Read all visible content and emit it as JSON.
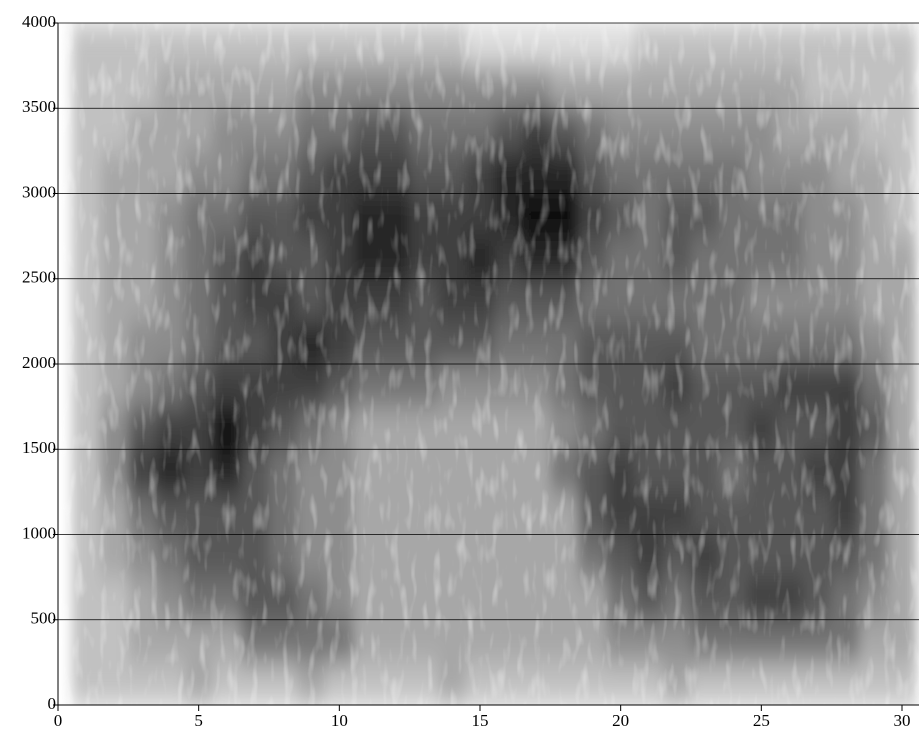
{
  "chart_data": {
    "type": "heatmap",
    "xbins": [
      0.5,
      1.5,
      2.5,
      3.5,
      4.5,
      5.5,
      6.5,
      7.5,
      8.5,
      9.5,
      10.5,
      11.5,
      12.5,
      13.5,
      14.5,
      15.5,
      16.5,
      17.5,
      18.5,
      19.5,
      20.5,
      21.5,
      22.5,
      23.5,
      24.5,
      25.5,
      26.5,
      27.5,
      28.5,
      29.5,
      30.5
    ],
    "ybins": [
      0,
      250,
      500,
      750,
      1000,
      1250,
      1500,
      1750,
      2000,
      2250,
      2500,
      2750,
      3000,
      3250,
      3500,
      3750,
      4000
    ],
    "z": [
      [
        2,
        2,
        2,
        2,
        3,
        2,
        2,
        2,
        3,
        2,
        2,
        2,
        2,
        3,
        2,
        2,
        2,
        2,
        2,
        2,
        2,
        3,
        2,
        2,
        2,
        2,
        2,
        2,
        2,
        2
      ],
      [
        2,
        2,
        3,
        3,
        3,
        3,
        5,
        5,
        5,
        5,
        3,
        3,
        3,
        3,
        3,
        3,
        3,
        3,
        3,
        4,
        4,
        4,
        5,
        5,
        5,
        5,
        5,
        5,
        3,
        3
      ],
      [
        2,
        2,
        3,
        4,
        5,
        5,
        6,
        6,
        5,
        4,
        3,
        3,
        3,
        3,
        3,
        3,
        3,
        3,
        3,
        5,
        6,
        5,
        6,
        6,
        7,
        7,
        6,
        5,
        4,
        3
      ],
      [
        2,
        3,
        4,
        5,
        6,
        6,
        6,
        5,
        4,
        4,
        3,
        3,
        3,
        3,
        3,
        3,
        3,
        3,
        5,
        6,
        7,
        6,
        7,
        6,
        6,
        6,
        6,
        6,
        5,
        3
      ],
      [
        2,
        3,
        5,
        6,
        6,
        6,
        6,
        5,
        4,
        4,
        3,
        3,
        3,
        3,
        3,
        3,
        3,
        3,
        6,
        7,
        7,
        7,
        6,
        6,
        6,
        6,
        6,
        7,
        5,
        3
      ],
      [
        2,
        4,
        7,
        8,
        7,
        8,
        6,
        5,
        4,
        4,
        3,
        3,
        3,
        3,
        3,
        3,
        3,
        5,
        6,
        7,
        6,
        6,
        6,
        5,
        6,
        6,
        7,
        7,
        5,
        3
      ],
      [
        2,
        4,
        6,
        7,
        7,
        9,
        7,
        6,
        5,
        4,
        3,
        3,
        3,
        3,
        3,
        3,
        3,
        4,
        5,
        6,
        6,
        6,
        6,
        6,
        7,
        6,
        6,
        7,
        6,
        3
      ],
      [
        2,
        3,
        4,
        5,
        6,
        7,
        7,
        7,
        7,
        6,
        5,
        5,
        5,
        4,
        4,
        4,
        4,
        5,
        6,
        6,
        6,
        7,
        6,
        6,
        6,
        7,
        7,
        7,
        5,
        3
      ],
      [
        2,
        3,
        4,
        4,
        5,
        6,
        6,
        7,
        8,
        7,
        6,
        6,
        6,
        6,
        6,
        5,
        5,
        5,
        6,
        6,
        6,
        6,
        5,
        5,
        5,
        5,
        5,
        5,
        4,
        3
      ],
      [
        2,
        3,
        3,
        4,
        5,
        6,
        7,
        7,
        6,
        7,
        7,
        7,
        6,
        7,
        7,
        6,
        6,
        6,
        5,
        5,
        5,
        5,
        5,
        5,
        4,
        4,
        4,
        4,
        3,
        3
      ],
      [
        2,
        3,
        3,
        4,
        5,
        6,
        7,
        6,
        6,
        7,
        8,
        8,
        7,
        7,
        8,
        7,
        8,
        8,
        6,
        5,
        5,
        6,
        5,
        5,
        5,
        5,
        4,
        4,
        3,
        3
      ],
      [
        2,
        3,
        3,
        4,
        5,
        5,
        6,
        6,
        7,
        7,
        8,
        8,
        7,
        7,
        7,
        8,
        9,
        9,
        7,
        6,
        5,
        6,
        6,
        5,
        5,
        5,
        4,
        4,
        3,
        2
      ],
      [
        2,
        3,
        3,
        3,
        4,
        4,
        5,
        5,
        6,
        7,
        7,
        7,
        6,
        6,
        7,
        8,
        8,
        8,
        6,
        5,
        5,
        5,
        5,
        5,
        4,
        4,
        4,
        3,
        3,
        2
      ],
      [
        2,
        2,
        3,
        3,
        3,
        4,
        4,
        4,
        5,
        5,
        6,
        6,
        5,
        5,
        5,
        6,
        7,
        6,
        5,
        4,
        4,
        4,
        4,
        4,
        4,
        3,
        3,
        3,
        2,
        2
      ],
      [
        2,
        2,
        2,
        3,
        3,
        3,
        3,
        3,
        4,
        4,
        4,
        4,
        4,
        4,
        4,
        4,
        4,
        3,
        3,
        3,
        3,
        3,
        3,
        3,
        3,
        3,
        2,
        2,
        2,
        2
      ],
      [
        2,
        2,
        2,
        2,
        2,
        2,
        2,
        2,
        2,
        2,
        2,
        2,
        2,
        2,
        1,
        1,
        1,
        1,
        1,
        1,
        2,
        2,
        2,
        2,
        2,
        2,
        2,
        2,
        2,
        2
      ]
    ],
    "xlim": [
      0,
      30.5
    ],
    "ylim": [
      0,
      4000
    ],
    "xticks": [
      0,
      5,
      10,
      15,
      20,
      25,
      30
    ],
    "yticks": [
      0,
      500,
      1000,
      1500,
      2000,
      2500,
      3000,
      3500,
      4000
    ],
    "grid": true
  }
}
